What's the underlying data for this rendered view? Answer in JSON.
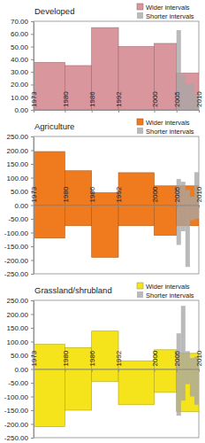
{
  "chart_data": [
    {
      "type": "histogram",
      "title": "Developed",
      "xlim": [
        1973,
        2010
      ],
      "xticks": [
        1973,
        1980,
        1986,
        1992,
        2000,
        2005,
        2010
      ],
      "ylim": [
        0,
        70
      ],
      "yticks": [
        {
          "value": 0,
          "label": "0.00"
        },
        {
          "value": 10,
          "label": "10.00"
        },
        {
          "value": 20,
          "label": "20.00"
        },
        {
          "value": 30,
          "label": "30.00"
        },
        {
          "value": 40,
          "label": "40.00"
        },
        {
          "value": 50,
          "label": "50.00"
        },
        {
          "value": 60,
          "label": "60.00"
        },
        {
          "value": 70,
          "label": "70.00"
        }
      ],
      "grid": false,
      "legend": "top-right",
      "series": [
        {
          "name": "Wider intervals",
          "color": "#d9969c",
          "bins": [
            1973,
            1980,
            1986,
            1992,
            2000,
            2005,
            2010
          ],
          "values": [
            37.5,
            35,
            65,
            50,
            52.5,
            29
          ]
        },
        {
          "name": "Shorter intervals",
          "color": "#a6a6a6",
          "bins": [
            2005,
            2006,
            2007,
            2008,
            2009,
            2010
          ],
          "values": [
            63,
            27,
            20,
            21,
            12
          ]
        }
      ]
    },
    {
      "type": "histogram",
      "title": "Agriculture",
      "xlim": [
        1973,
        2010
      ],
      "xticks": [
        1973,
        1980,
        1986,
        1992,
        2000,
        2005,
        2010
      ],
      "ylim": [
        -250,
        250
      ],
      "yticks": [
        {
          "value": -250,
          "label": "-250.00"
        },
        {
          "value": -200,
          "label": "-200.00"
        },
        {
          "value": -150,
          "label": "-150.00"
        },
        {
          "value": -100,
          "label": "-100.00"
        },
        {
          "value": -50,
          "label": "-50.00"
        },
        {
          "value": 0,
          "label": "0.00"
        },
        {
          "value": 50,
          "label": "50.00"
        },
        {
          "value": 100,
          "label": "100.00"
        },
        {
          "value": 150,
          "label": "150.00"
        },
        {
          "value": 200,
          "label": "200.00"
        },
        {
          "value": 250,
          "label": "250.00"
        }
      ],
      "grid": false,
      "legend": "top-right",
      "series": [
        {
          "name": "Wider intervals",
          "color": "#f07b1e",
          "bins": [
            1973,
            1980,
            1986,
            1992,
            2000,
            2005,
            2010
          ],
          "values": [
            195,
            125,
            45,
            118,
            70,
            70
          ],
          "negative_values": [
            -120,
            -75,
            -190,
            -75,
            -110,
            -75
          ]
        },
        {
          "name": "Shorter intervals",
          "color": "#a6a6a6",
          "bins": [
            2005,
            2006,
            2007,
            2008,
            2009,
            2010
          ],
          "values": [
            95,
            85,
            55,
            30,
            120
          ],
          "negative_values": [
            -145,
            -95,
            -225,
            -55,
            -50
          ]
        }
      ]
    },
    {
      "type": "histogram",
      "title": "Grassland/shrubland",
      "xlim": [
        1973,
        2010
      ],
      "xticks": [
        1973,
        1980,
        1986,
        1992,
        2000,
        2005,
        2010
      ],
      "ylim": [
        -250,
        250
      ],
      "yticks": [
        {
          "value": -250,
          "label": "-250.00"
        },
        {
          "value": -200,
          "label": "-200.00"
        },
        {
          "value": -150,
          "label": "-150.00"
        },
        {
          "value": -100,
          "label": "-100.00"
        },
        {
          "value": -50,
          "label": "-50.00"
        },
        {
          "value": 0,
          "label": "0.00"
        },
        {
          "value": 50,
          "label": "50.00"
        },
        {
          "value": 100,
          "label": "100.00"
        },
        {
          "value": 150,
          "label": "150.00"
        },
        {
          "value": 200,
          "label": "200.00"
        },
        {
          "value": 250,
          "label": "250.00"
        }
      ],
      "grid": false,
      "legend": "top-right",
      "series": [
        {
          "name": "Wider intervals",
          "color": "#f5e31b",
          "bins": [
            1973,
            1980,
            1986,
            1992,
            2000,
            2005,
            2010
          ],
          "values": [
            90,
            78,
            138,
            30,
            70,
            57
          ],
          "negative_values": [
            -210,
            -150,
            -45,
            -130,
            -85,
            -155
          ]
        },
        {
          "name": "Shorter intervals",
          "color": "#a6a6a6",
          "bins": [
            2005,
            2006,
            2007,
            2008,
            2009,
            2010
          ],
          "values": [
            130,
            230,
            65,
            40,
            45
          ],
          "negative_values": [
            -170,
            -115,
            -55,
            -100,
            -130
          ]
        }
      ]
    }
  ]
}
